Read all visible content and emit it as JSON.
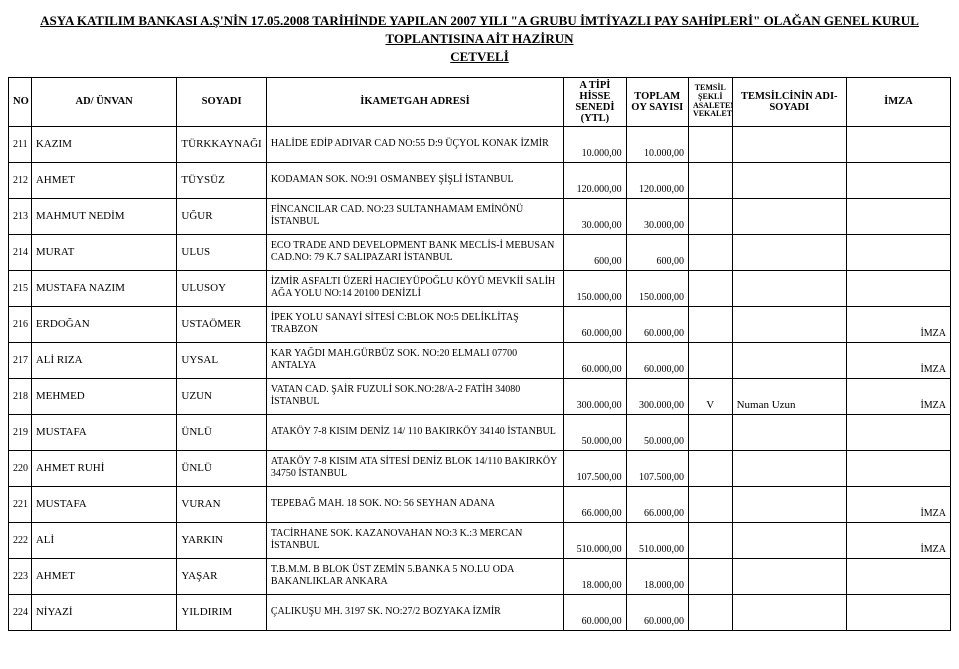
{
  "title_line1": "ASYA KATILIM BANKASI A.Ş'NİN 17.05.2008 TARİHİNDE YAPILAN  2007 YILI \"A GRUBU İMTİYAZLI PAY SAHİPLERİ\" OLAĞAN GENEL KURUL TOPLANTISINA AİT HAZİRUN",
  "title_line2": "CETVELİ",
  "headers": {
    "no": "NO",
    "ad": "AD/ ÜNVAN",
    "soyadi": "SOYADI",
    "adres": "İKAMETGAH ADRESİ",
    "hisse": "A TİPİ HİSSE SENEDİ (YTL)",
    "oy": "TOPLAM OY SAYISI",
    "sekli": "TEMSİL ŞEKLİ ASALETEN/ VEKALETEN",
    "rep": "TEMSİLCİNİN ADI-SOYADI",
    "imza": "İMZA"
  },
  "rows": [
    {
      "no": "211",
      "ad": "KAZIM",
      "soyadi": "TÜRKKAYNAĞI",
      "adres": "HALİDE EDİP ADIVAR CAD NO:55 D:9 ÜÇYOL KONAK  İZMİR",
      "hisse": "10.000,00",
      "oy": "10.000,00",
      "sekli": "",
      "rep": "",
      "imza": ""
    },
    {
      "no": "212",
      "ad": "AHMET",
      "soyadi": "TÜYSÜZ",
      "adres": "KODAMAN SOK. NO:91 OSMANBEY ŞİŞLİ  İSTANBUL",
      "hisse": "120.000,00",
      "oy": "120.000,00",
      "sekli": "",
      "rep": "",
      "imza": ""
    },
    {
      "no": "213",
      "ad": "MAHMUT NEDİM",
      "soyadi": "UĞUR",
      "adres": "FİNCANCILAR CAD. NO:23 SULTANHAMAM EMİNÖNÜ  İSTANBUL",
      "hisse": "30.000,00",
      "oy": "30.000,00",
      "sekli": "",
      "rep": "",
      "imza": ""
    },
    {
      "no": "214",
      "ad": "MURAT",
      "soyadi": "ULUS",
      "adres": "ECO TRADE AND DEVELOPMENT BANK MECLİS-İ MEBUSAN CAD.NO: 79 K.7 SALIPAZARI   İSTANBUL",
      "hisse": "600,00",
      "oy": "600,00",
      "sekli": "",
      "rep": "",
      "imza": ""
    },
    {
      "no": "215",
      "ad": "MUSTAFA NAZIM",
      "soyadi": "ULUSOY",
      "adres": "İZMİR ASFALTI ÜZERİ HACIEYÜPOĞLU KÖYÜ MEVKİİ SALİH AĞA YOLU NO:14  20100 DENİZLİ",
      "hisse": "150.000,00",
      "oy": "150.000,00",
      "sekli": "",
      "rep": "",
      "imza": ""
    },
    {
      "no": "216",
      "ad": "ERDOĞAN",
      "soyadi": "USTAÖMER",
      "adres": "İPEK YOLU SANAYİ SİTESİ C:BLOK NO:5 DELİKLİTAŞ  TRABZON",
      "hisse": "60.000,00",
      "oy": "60.000,00",
      "sekli": "",
      "rep": "",
      "imza": "İMZA"
    },
    {
      "no": "217",
      "ad": "ALİ RIZA",
      "soyadi": "UYSAL",
      "adres": "KAR YAĞDI MAH.GÜRBÜZ SOK. NO:20 ELMALI 07700 ANTALYA",
      "hisse": "60.000,00",
      "oy": "60.000,00",
      "sekli": "",
      "rep": "",
      "imza": "İMZA"
    },
    {
      "no": "218",
      "ad": "MEHMED",
      "soyadi": "UZUN",
      "adres": "VATAN CAD. ŞAİR FUZULİ SOK.NO:28/A-2 FATİH 34080 İSTANBUL",
      "hisse": "300.000,00",
      "oy": "300.000,00",
      "sekli": "V",
      "rep": "Numan Uzun",
      "imza": "İMZA"
    },
    {
      "no": "219",
      "ad": "MUSTAFA",
      "soyadi": "ÜNLÜ",
      "adres": "ATAKÖY 7-8 KISIM DENİZ 14/ 110 BAKIRKÖY 34140 İSTANBUL",
      "hisse": "50.000,00",
      "oy": "50.000,00",
      "sekli": "",
      "rep": "",
      "imza": ""
    },
    {
      "no": "220",
      "ad": "AHMET RUHİ",
      "soyadi": "ÜNLÜ",
      "adres": "ATAKÖY 7-8 KISIM ATA SİTESİ DENİZ BLOK  14/110 BAKIRKÖY 34750 İSTANBUL",
      "hisse": "107.500,00",
      "oy": "107.500,00",
      "sekli": "",
      "rep": "",
      "imza": ""
    },
    {
      "no": "221",
      "ad": "MUSTAFA",
      "soyadi": "VURAN",
      "adres": "TEPEBAĞ MAH. 18 SOK. NO: 56 SEYHAN  ADANA",
      "hisse": "66.000,00",
      "oy": "66.000,00",
      "sekli": "",
      "rep": "",
      "imza": "İMZA"
    },
    {
      "no": "222",
      "ad": "ALİ",
      "soyadi": "YARKIN",
      "adres": "TACİRHANE SOK. KAZANOVAHAN NO:3 K.:3 MERCAN  İSTANBUL",
      "hisse": "510.000,00",
      "oy": "510.000,00",
      "sekli": "",
      "rep": "",
      "imza": "İMZA"
    },
    {
      "no": "223",
      "ad": "AHMET",
      "soyadi": "YAŞAR",
      "adres": "T.B.M.M. B BLOK ÜST ZEMİN 5.BANKA 5 NO.LU ODA BAKANLIKLAR  ANKARA",
      "hisse": "18.000,00",
      "oy": "18.000,00",
      "sekli": "",
      "rep": "",
      "imza": ""
    },
    {
      "no": "224",
      "ad": "NİYAZİ",
      "soyadi": "YILDIRIM",
      "adres": "ÇALIKUŞU MH. 3197 SK. NO:27/2 BOZYAKA  İZMİR",
      "hisse": "60.000,00",
      "oy": "60.000,00",
      "sekli": "",
      "rep": "",
      "imza": ""
    }
  ]
}
